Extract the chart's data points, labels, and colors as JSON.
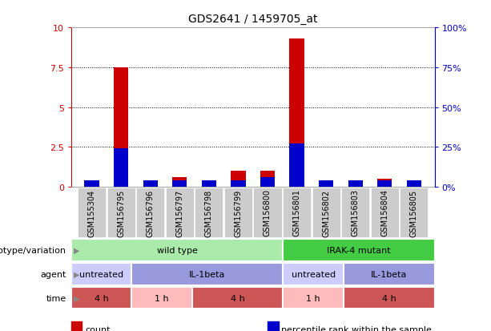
{
  "title": "GDS2641 / 1459705_at",
  "samples": [
    "GSM155304",
    "GSM156795",
    "GSM156796",
    "GSM156797",
    "GSM156798",
    "GSM156799",
    "GSM156800",
    "GSM156801",
    "GSM156802",
    "GSM156803",
    "GSM156804",
    "GSM156805"
  ],
  "count_values": [
    0.05,
    7.5,
    0.05,
    0.6,
    0.05,
    1.0,
    1.0,
    9.3,
    0.05,
    0.4,
    0.5,
    0.2
  ],
  "percentile_values": [
    4,
    24,
    4,
    4,
    4,
    4,
    6,
    27,
    4,
    4,
    4,
    4
  ],
  "ylim_left": [
    0,
    10
  ],
  "ylim_right": [
    0,
    100
  ],
  "yticks_left": [
    0,
    2.5,
    5,
    7.5,
    10
  ],
  "yticks_right": [
    0,
    25,
    50,
    75,
    100
  ],
  "count_color": "#cc0000",
  "percentile_color": "#0000cc",
  "bar_width": 0.5,
  "annotation_rows": [
    {
      "label": "genotype/variation",
      "groups": [
        {
          "text": "wild type",
          "start": 0,
          "end": 7,
          "color": "#aaeaaa",
          "border": "#aaeaaa"
        },
        {
          "text": "IRAK-4 mutant",
          "start": 7,
          "end": 12,
          "color": "#44cc44",
          "border": "#44cc44"
        }
      ]
    },
    {
      "label": "agent",
      "groups": [
        {
          "text": "untreated",
          "start": 0,
          "end": 2,
          "color": "#ccccff",
          "border": "#ccccff"
        },
        {
          "text": "IL-1beta",
          "start": 2,
          "end": 7,
          "color": "#9999dd",
          "border": "#9999dd"
        },
        {
          "text": "untreated",
          "start": 7,
          "end": 9,
          "color": "#ccccff",
          "border": "#ccccff"
        },
        {
          "text": "IL-1beta",
          "start": 9,
          "end": 12,
          "color": "#9999dd",
          "border": "#9999dd"
        }
      ]
    },
    {
      "label": "time",
      "groups": [
        {
          "text": "4 h",
          "start": 0,
          "end": 2,
          "color": "#cc5555",
          "border": "#cc5555"
        },
        {
          "text": "1 h",
          "start": 2,
          "end": 4,
          "color": "#ffbbbb",
          "border": "#ffbbbb"
        },
        {
          "text": "4 h",
          "start": 4,
          "end": 7,
          "color": "#cc5555",
          "border": "#cc5555"
        },
        {
          "text": "1 h",
          "start": 7,
          "end": 9,
          "color": "#ffbbbb",
          "border": "#ffbbbb"
        },
        {
          "text": "4 h",
          "start": 9,
          "end": 12,
          "color": "#cc5555",
          "border": "#cc5555"
        }
      ]
    }
  ],
  "legend_items": [
    {
      "label": "count",
      "color": "#cc0000"
    },
    {
      "label": "percentile rank within the sample",
      "color": "#0000cc"
    }
  ],
  "grid_color": "#000000",
  "bg_color": "#ffffff",
  "left_axis_color": "#cc0000",
  "right_axis_color": "#0000cc",
  "xticklabel_bg": "#cccccc",
  "row_label_color": "#888888",
  "row_arrow_color": "#888888"
}
